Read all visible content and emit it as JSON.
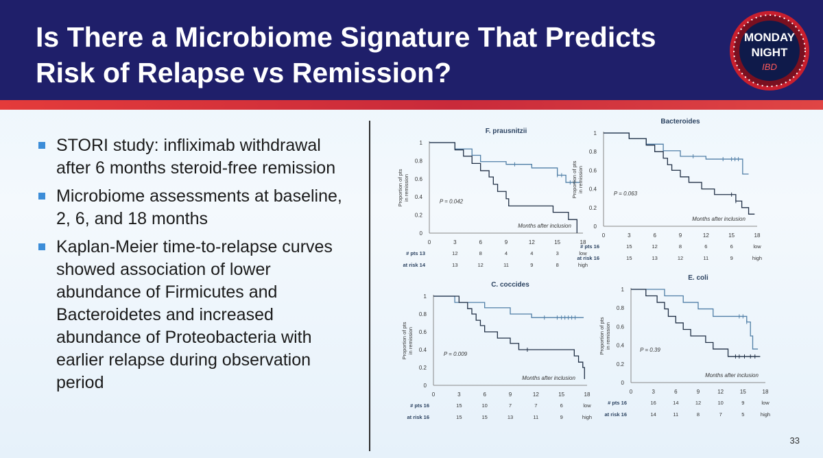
{
  "slide": {
    "title_lines": [
      "Is There a Microbiome Signature That Predicts",
      "Risk of Relapse vs Remission?"
    ],
    "logo": {
      "line1": "MONDAY",
      "line2": "NIGHT",
      "line3": "IBD"
    },
    "bullets": [
      "STORI study: infliximab withdrawal after 6 months steroid-free remission",
      "Microbiome assessments at baseline, 2, 6, and 18 months",
      "Kaplan-Meier time-to-relapse curves showed association of lower abundance of Firmicutes and Bacteroidetes and increased abundance of Proteobacteria with earlier relapse during observation period"
    ],
    "page_number": "33",
    "colors": {
      "header": "#1f1f6a",
      "stripe": "#d9343f",
      "bullet": "#3c8dd8",
      "high_curve": "#4f7ea6",
      "low_curve": "#1f2e44"
    }
  },
  "chart_data": [
    {
      "type": "line",
      "title": "F. prausnitzii",
      "ylabel": "Proportion of pts in remission",
      "xlabel": "Months after inclusion",
      "p_value": "P = 0.042",
      "x_ticks": [
        0,
        3,
        6,
        9,
        12,
        15,
        18
      ],
      "y_ticks": [
        "0",
        "0.2",
        "0.4",
        "0.6",
        "0.8",
        "1"
      ],
      "xlim": [
        0,
        18
      ],
      "ylim": [
        0,
        1
      ],
      "series": [
        {
          "name": "high",
          "steps": [
            [
              0,
              1
            ],
            [
              3,
              0.93
            ],
            [
              5,
              0.86
            ],
            [
              6,
              0.79
            ],
            [
              9,
              0.76
            ],
            [
              12,
              0.72
            ],
            [
              15,
              0.64
            ],
            [
              16,
              0.56
            ],
            [
              17.6,
              0.56
            ]
          ],
          "censor": [
            10,
            15,
            15.5,
            16.5,
            17
          ]
        },
        {
          "name": "low",
          "steps": [
            [
              0,
              1
            ],
            [
              3,
              0.92
            ],
            [
              4,
              0.85
            ],
            [
              5,
              0.77
            ],
            [
              6,
              0.69
            ],
            [
              7,
              0.62
            ],
            [
              7.5,
              0.54
            ],
            [
              8,
              0.46
            ],
            [
              9,
              0.38
            ],
            [
              9.3,
              0.3
            ],
            [
              14,
              0.3
            ],
            [
              14.5,
              0.23
            ],
            [
              16,
              0.23
            ],
            [
              16.3,
              0.15
            ],
            [
              17.3,
              0.15
            ],
            [
              17.3,
              0.0
            ]
          ],
          "censor": []
        }
      ],
      "risk_table": [
        {
          "label": "# pts 13",
          "values": [
            12,
            8,
            4,
            4,
            3
          ],
          "group": "low"
        },
        {
          "label": "at risk 14",
          "values": [
            13,
            12,
            11,
            9,
            8
          ],
          "group": "high"
        }
      ]
    },
    {
      "type": "line",
      "title": "Bacteroides",
      "ylabel": "Proportion of pts in remission",
      "xlabel": "Months after inclusion",
      "p_value": "P = 0.063",
      "x_ticks": [
        0,
        3,
        6,
        9,
        12,
        15,
        18
      ],
      "y_ticks": [
        "0",
        "0.2",
        "0.4",
        "0.6",
        "0.8",
        "1"
      ],
      "xlim": [
        0,
        18
      ],
      "ylim": [
        0,
        1
      ],
      "series": [
        {
          "name": "high",
          "steps": [
            [
              0,
              1
            ],
            [
              3,
              0.94
            ],
            [
              5,
              0.88
            ],
            [
              7,
              0.81
            ],
            [
              9,
              0.75
            ],
            [
              12,
              0.72
            ],
            [
              16,
              0.72
            ],
            [
              16.3,
              0.56
            ],
            [
              17,
              0.56
            ]
          ],
          "censor": [
            10.5,
            14,
            15,
            15.4,
            15.8
          ]
        },
        {
          "name": "low",
          "steps": [
            [
              0,
              1
            ],
            [
              3,
              0.94
            ],
            [
              5,
              0.87
            ],
            [
              6,
              0.8
            ],
            [
              7,
              0.73
            ],
            [
              7.5,
              0.66
            ],
            [
              8,
              0.6
            ],
            [
              9,
              0.53
            ],
            [
              10,
              0.47
            ],
            [
              11.5,
              0.4
            ],
            [
              13,
              0.34
            ],
            [
              15.5,
              0.27
            ],
            [
              16.2,
              0.2
            ],
            [
              17,
              0.13
            ],
            [
              17.7,
              0.13
            ]
          ],
          "censor": [
            15,
            15.5
          ]
        }
      ],
      "risk_table": [
        {
          "label": "# pts 16",
          "values": [
            15,
            12,
            8,
            6,
            6
          ],
          "group": "low"
        },
        {
          "label": "at risk 16",
          "values": [
            15,
            13,
            12,
            11,
            9
          ],
          "group": "high"
        }
      ]
    },
    {
      "type": "line",
      "title": "C. coccides",
      "ylabel": "Proportion of pts in remission",
      "xlabel": "Months after inclusion",
      "p_value": "P = 0.009",
      "x_ticks": [
        0,
        3,
        6,
        9,
        12,
        15,
        18
      ],
      "y_ticks": [
        "0",
        "0.2",
        "0.4",
        "0.6",
        "0.8",
        "1"
      ],
      "xlim": [
        0,
        18
      ],
      "ylim": [
        0,
        1
      ],
      "series": [
        {
          "name": "high",
          "steps": [
            [
              0,
              1
            ],
            [
              2.5,
              0.93
            ],
            [
              6,
              0.87
            ],
            [
              9,
              0.8
            ],
            [
              11.5,
              0.76
            ],
            [
              17.6,
              0.76
            ]
          ],
          "censor": [
            13,
            14.5,
            15,
            15.4,
            15.8,
            16.2,
            16.6
          ]
        },
        {
          "name": "low",
          "steps": [
            [
              0,
              1
            ],
            [
              3,
              0.93
            ],
            [
              4,
              0.86
            ],
            [
              4.5,
              0.8
            ],
            [
              5,
              0.73
            ],
            [
              5.5,
              0.67
            ],
            [
              6,
              0.6
            ],
            [
              7.5,
              0.53
            ],
            [
              9,
              0.47
            ],
            [
              10,
              0.4
            ],
            [
              16,
              0.4
            ],
            [
              16.5,
              0.33
            ],
            [
              17,
              0.26
            ],
            [
              17.5,
              0.2
            ],
            [
              17.7,
              0.13
            ],
            [
              17.7,
              0.07
            ]
          ],
          "censor": [
            11
          ]
        }
      ],
      "risk_table": [
        {
          "label": "# pts 16",
          "values": [
            15,
            10,
            7,
            7,
            6
          ],
          "group": "low"
        },
        {
          "label": "at risk 16",
          "values": [
            15,
            15,
            13,
            11,
            9
          ],
          "group": "high"
        }
      ]
    },
    {
      "type": "line",
      "title": "E. coli",
      "ylabel": "Proportion of pts in remission",
      "xlabel": "Months after inclusion",
      "p_value": "P = 0.39",
      "x_ticks": [
        0,
        3,
        6,
        9,
        12,
        15,
        18
      ],
      "y_ticks": [
        "0",
        "0.2",
        "0.4",
        "0.6",
        "0.8",
        "1"
      ],
      "xlim": [
        0,
        18
      ],
      "ylim": [
        0,
        1
      ],
      "series": [
        {
          "name": "high",
          "steps": [
            [
              0,
              1
            ],
            [
              4.5,
              0.93
            ],
            [
              7,
              0.86
            ],
            [
              9,
              0.79
            ],
            [
              11,
              0.71
            ],
            [
              15.5,
              0.65
            ],
            [
              16,
              0.5
            ],
            [
              16.3,
              0.36
            ],
            [
              17,
              0.36
            ]
          ],
          "censor": [
            14.5,
            15,
            15.5
          ]
        },
        {
          "name": "low",
          "steps": [
            [
              0,
              1
            ],
            [
              2,
              0.93
            ],
            [
              3.5,
              0.86
            ],
            [
              4.5,
              0.79
            ],
            [
              5,
              0.71
            ],
            [
              6,
              0.64
            ],
            [
              7,
              0.57
            ],
            [
              8,
              0.5
            ],
            [
              10,
              0.43
            ],
            [
              11,
              0.36
            ],
            [
              13,
              0.28
            ],
            [
              17.3,
              0.28
            ]
          ],
          "censor": [
            14,
            14.5,
            15.2,
            16,
            16.6
          ]
        }
      ],
      "risk_table": [
        {
          "label": "# pts 16",
          "values": [
            16,
            14,
            12,
            10,
            9
          ],
          "group": "low"
        },
        {
          "label": "at risk 16",
          "values": [
            14,
            11,
            8,
            7,
            5
          ],
          "group": "high"
        }
      ]
    }
  ]
}
